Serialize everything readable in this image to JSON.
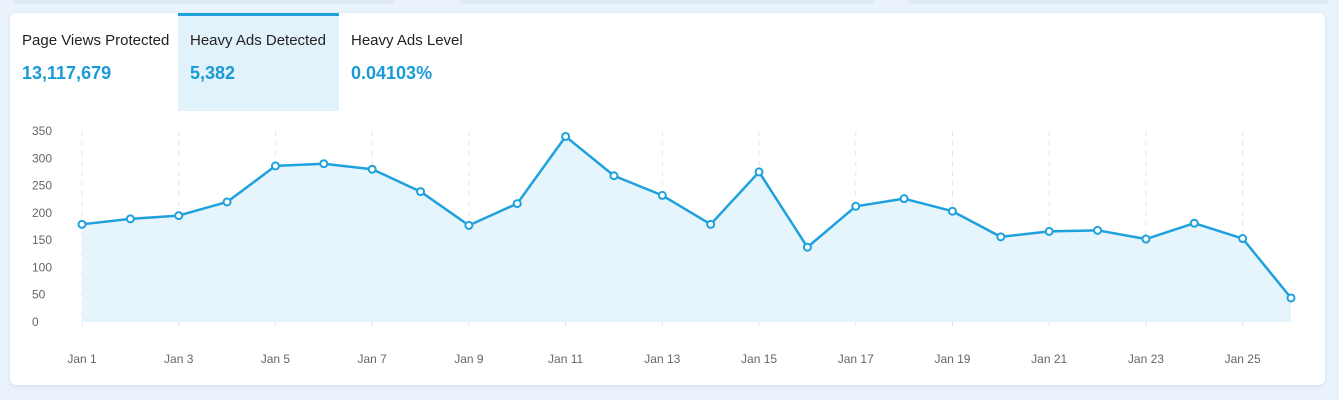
{
  "colors": {
    "accent": "#1a9ad6",
    "line": "#1ea1dc",
    "area_fill": "#e6f4fc",
    "active_tab_bg": "#e1f2fa",
    "page_bg": "#eaf3fb"
  },
  "tabs": [
    {
      "label": "Page Views Protected",
      "value": "13,117,679"
    },
    {
      "label": "Heavy Ads Detected",
      "value": "5,382",
      "active": true
    },
    {
      "label": "Heavy Ads Level",
      "value": "0.04103%"
    }
  ],
  "chart_data": {
    "type": "area",
    "title": "",
    "xlabel": "",
    "ylabel": "",
    "ylim": [
      0,
      350
    ],
    "yticks": [
      0,
      50,
      100,
      150,
      200,
      250,
      300,
      350
    ],
    "grid": "vertical dashed",
    "x": [
      "Jan 1",
      "Jan 2",
      "Jan 3",
      "Jan 4",
      "Jan 5",
      "Jan 6",
      "Jan 7",
      "Jan 8",
      "Jan 9",
      "Jan 10",
      "Jan 11",
      "Jan 12",
      "Jan 13",
      "Jan 14",
      "Jan 15",
      "Jan 16",
      "Jan 17",
      "Jan 18",
      "Jan 19",
      "Jan 20",
      "Jan 21",
      "Jan 22",
      "Jan 23",
      "Jan 24",
      "Jan 25",
      "Jan 26"
    ],
    "x_tick_labels": [
      "Jan 1",
      "Jan 3",
      "Jan 5",
      "Jan 7",
      "Jan 9",
      "Jan 11",
      "Jan 13",
      "Jan 15",
      "Jan 17",
      "Jan 19",
      "Jan 21",
      "Jan 23",
      "Jan 25"
    ],
    "series": [
      {
        "values": [
          179,
          189,
          195,
          220,
          286,
          290,
          280,
          239,
          177,
          217,
          340,
          268,
          232,
          179,
          275,
          137,
          212,
          226,
          203,
          156,
          166,
          168,
          152,
          181,
          153,
          44
        ]
      }
    ]
  }
}
